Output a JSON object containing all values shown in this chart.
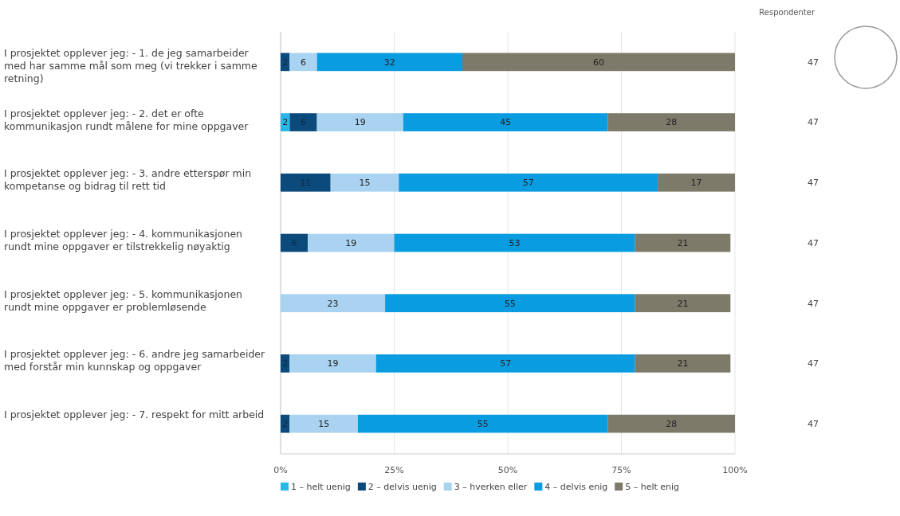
{
  "chart_data": {
    "type": "bar",
    "orientation": "horizontal",
    "stacked": true,
    "categories": [
      "I prosjektet opplever jeg: - 1. de jeg samarbeider med har samme mål som meg (vi trekker i samme retning)",
      "I prosjektet opplever jeg: - 2. det er ofte kommunikasjon rundt målene for mine oppgaver",
      "I prosjektet opplever jeg: - 3. andre etterspør min kompetanse og bidrag til rett tid",
      "I prosjektet opplever jeg: - 4. kommunikasjonen rundt mine oppgaver er tilstrekkelig nøyaktig",
      "I prosjektet opplever jeg: - 5. kommunikasjonen rundt mine oppgaver er problemløsende",
      "I prosjektet opplever jeg: - 6. andre jeg samarbeider med forstår min kunnskap og oppgaver",
      "I prosjektet opplever jeg: - 7. respekt for mitt arbeid"
    ],
    "series": [
      {
        "name": "1 – helt uenig",
        "color": "#29b6e8",
        "values": [
          null,
          2,
          null,
          null,
          null,
          null,
          null
        ]
      },
      {
        "name": "2 – delvis uenig",
        "color": "#0d4a7c",
        "values": [
          2,
          6,
          11,
          6,
          null,
          2,
          2
        ]
      },
      {
        "name": "3 – hverken eller",
        "color": "#a9d3f0",
        "values": [
          6,
          19,
          15,
          19,
          23,
          19,
          15
        ]
      },
      {
        "name": "4 – delvis enig",
        "color": "#0a9ce0",
        "values": [
          32,
          45,
          57,
          53,
          55,
          57,
          55
        ]
      },
      {
        "name": "5 – helt enig",
        "color": "#7d7a6a",
        "values": [
          60,
          28,
          17,
          21,
          21,
          21,
          28
        ]
      }
    ],
    "xlim": [
      0,
      100
    ],
    "xticks": [
      {
        "value": 0,
        "label": "0%"
      },
      {
        "value": 25,
        "label": "25%"
      },
      {
        "value": 50,
        "label": "50%"
      },
      {
        "value": 75,
        "label": "75%"
      },
      {
        "value": 100,
        "label": "100%"
      }
    ],
    "grid": "x",
    "legend": "bottom",
    "data_labels": true,
    "annotations": [
      "Respondenter",
      "47",
      "47",
      "47",
      "47",
      "47",
      "47",
      "47"
    ]
  }
}
